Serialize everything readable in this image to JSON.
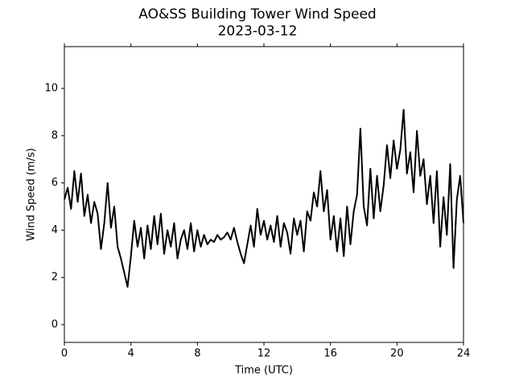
{
  "chart_data": {
    "type": "line",
    "title": "AO&SS Building Tower Wind Speed",
    "subtitle": "2023-03-12",
    "x_label": "Time (UTC)",
    "y_label": "Wind Speed (m/s)",
    "color": "#000000",
    "xlim": [
      0,
      24
    ],
    "xticks": [
      0,
      4,
      8,
      12,
      16,
      20,
      24
    ],
    "ylim": [
      -0.75,
      11.77
    ],
    "yticks": [
      0,
      2,
      4,
      6,
      8,
      10
    ],
    "x": [
      0,
      0.2,
      0.4,
      0.6,
      0.8,
      1,
      1.2,
      1.4,
      1.6,
      1.8,
      2,
      2.2,
      2.4,
      2.6,
      2.8,
      3,
      3.2,
      3.4,
      3.6,
      3.8,
      4,
      4.2,
      4.4,
      4.6,
      4.8,
      5,
      5.2,
      5.4,
      5.6,
      5.8,
      6,
      6.2,
      6.4,
      6.6,
      6.8,
      7,
      7.2,
      7.4,
      7.6,
      7.8,
      8,
      8.2,
      8.4,
      8.6,
      8.8,
      9,
      9.2,
      9.4,
      9.6,
      9.8,
      10,
      10.2,
      10.4,
      10.6,
      10.8,
      11,
      11.2,
      11.4,
      11.6,
      11.8,
      12,
      12.2,
      12.4,
      12.6,
      12.8,
      13,
      13.2,
      13.4,
      13.6,
      13.8,
      14,
      14.2,
      14.4,
      14.6,
      14.8,
      15,
      15.2,
      15.4,
      15.6,
      15.8,
      16,
      16.2,
      16.4,
      16.6,
      16.8,
      17,
      17.2,
      17.4,
      17.6,
      17.8,
      18,
      18.2,
      18.4,
      18.6,
      18.8,
      19,
      19.2,
      19.4,
      19.6,
      19.8,
      20,
      20.2,
      20.4,
      20.6,
      20.8,
      21,
      21.2,
      21.4,
      21.6,
      21.8,
      22,
      22.2,
      22.4,
      22.6,
      22.8,
      23,
      23.2,
      23.4,
      23.6,
      23.8,
      24
    ],
    "values": [
      5.3,
      5.8,
      4.9,
      6.5,
      5.2,
      6.4,
      4.6,
      5.5,
      4.3,
      5.2,
      4.7,
      3.2,
      4.3,
      6.0,
      4.1,
      5.0,
      3.3,
      2.8,
      2.2,
      1.6,
      2.9,
      4.4,
      3.3,
      4.1,
      2.8,
      4.2,
      3.2,
      4.6,
      3.4,
      4.7,
      3.0,
      4.0,
      3.3,
      4.3,
      2.8,
      3.6,
      4.0,
      3.2,
      4.3,
      3.1,
      4.0,
      3.3,
      3.8,
      3.4,
      3.6,
      3.5,
      3.8,
      3.6,
      3.7,
      3.9,
      3.6,
      4.1,
      3.5,
      3.0,
      2.6,
      3.4,
      4.2,
      3.3,
      4.9,
      3.8,
      4.4,
      3.6,
      4.2,
      3.5,
      4.6,
      3.3,
      4.3,
      3.9,
      3.0,
      4.5,
      3.8,
      4.4,
      3.1,
      4.8,
      4.4,
      5.6,
      5.0,
      6.5,
      4.8,
      5.7,
      3.6,
      4.6,
      3.1,
      4.5,
      2.9,
      5.0,
      3.4,
      4.8,
      5.5,
      8.3,
      5.0,
      4.2,
      6.6,
      4.5,
      6.3,
      4.8,
      5.9,
      7.6,
      6.2,
      7.8,
      6.6,
      7.4,
      9.1,
      6.4,
      7.3,
      5.6,
      8.2,
      6.3,
      7.0,
      5.1,
      6.3,
      4.3,
      6.5,
      3.3,
      5.4,
      3.8,
      6.8,
      2.4,
      5.3,
      6.3,
      4.3
    ]
  }
}
